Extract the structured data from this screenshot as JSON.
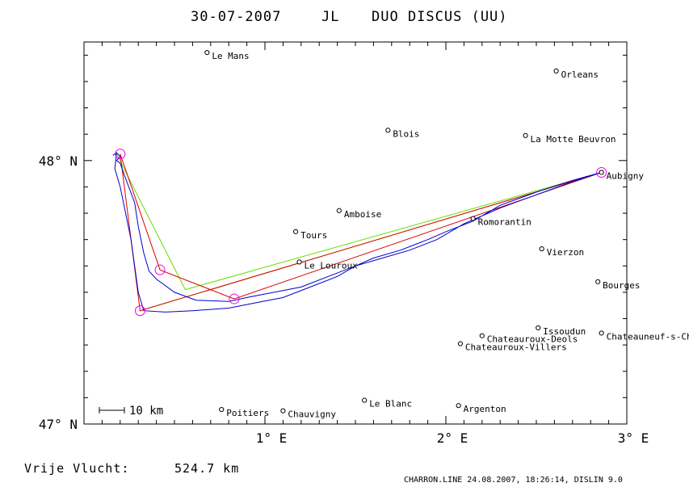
{
  "title": {
    "date": "30-07-2007",
    "pilot": "JL",
    "glider": "DUO DISCUS (UU)"
  },
  "axes": {
    "lon_range": [
      0.0,
      3.0
    ],
    "lat_range": [
      47.0,
      48.45
    ],
    "x_ticks": [
      {
        "lon": 1,
        "label": "1° E"
      },
      {
        "lon": 2,
        "label": "2° E"
      },
      {
        "lon": 3,
        "label": "3° E"
      }
    ],
    "y_ticks": [
      {
        "lat": 48,
        "label": "48° N"
      },
      {
        "lat": 47,
        "label": "47° N"
      }
    ]
  },
  "scale_bar": {
    "label": "10 km"
  },
  "towns": [
    {
      "name": "Le Mans",
      "lon": 0.68,
      "lat": 48.41
    },
    {
      "name": "Orleans",
      "lon": 2.61,
      "lat": 48.34
    },
    {
      "name": "Blois",
      "lon": 1.68,
      "lat": 48.115
    },
    {
      "name": "La Motte Beuvron",
      "lon": 2.44,
      "lat": 48.095
    },
    {
      "name": "Aubigny",
      "lon": 2.86,
      "lat": 47.955
    },
    {
      "name": "Amboise",
      "lon": 1.41,
      "lat": 47.81
    },
    {
      "name": "Romorantin",
      "lon": 2.15,
      "lat": 47.78
    },
    {
      "name": "Tours",
      "lon": 1.17,
      "lat": 47.73
    },
    {
      "name": "Vierzon",
      "lon": 2.53,
      "lat": 47.665
    },
    {
      "name": "Le Louroux",
      "lon": 1.19,
      "lat": 47.615
    },
    {
      "name": "Bourges",
      "lon": 2.84,
      "lat": 47.54
    },
    {
      "name": "Issoudun",
      "lon": 2.51,
      "lat": 47.365
    },
    {
      "name": "Chateauroux-Deols",
      "lon": 2.2,
      "lat": 47.335
    },
    {
      "name": "Chateauneuf-s-Cher",
      "lon": 2.86,
      "lat": 47.345
    },
    {
      "name": "Chateauroux-Villers",
      "lon": 2.08,
      "lat": 47.305
    },
    {
      "name": "Le Blanc",
      "lon": 1.55,
      "lat": 47.09
    },
    {
      "name": "Argenton",
      "lon": 2.07,
      "lat": 47.07
    },
    {
      "name": "Poitiers",
      "lon": 0.76,
      "lat": 47.055
    },
    {
      "name": "Chauvigny",
      "lon": 1.1,
      "lat": 47.05
    }
  ],
  "turnpoints": [
    {
      "lon": 0.2,
      "lat": 48.025
    },
    {
      "lon": 0.42,
      "lat": 47.585
    },
    {
      "lon": 0.83,
      "lat": 47.475
    },
    {
      "lon": 0.31,
      "lat": 47.43
    },
    {
      "lon": 2.86,
      "lat": 47.955
    }
  ],
  "route_red": [
    [
      0.2,
      48.025
    ],
    [
      0.31,
      47.43
    ],
    [
      2.86,
      47.955
    ],
    [
      0.83,
      47.475
    ],
    [
      0.42,
      47.585
    ],
    [
      0.2,
      48.025
    ]
  ],
  "route_green": [
    [
      0.18,
      48.025
    ],
    [
      0.56,
      47.51
    ],
    [
      2.86,
      47.955
    ],
    [
      0.31,
      47.43
    ]
  ],
  "track": [
    [
      0.16,
      48.02
    ],
    [
      0.18,
      48.03
    ],
    [
      0.2,
      48.015
    ],
    [
      0.18,
      48.0
    ],
    [
      0.2,
      47.99
    ],
    [
      0.22,
      47.95
    ],
    [
      0.28,
      47.84
    ],
    [
      0.3,
      47.75
    ],
    [
      0.33,
      47.65
    ],
    [
      0.36,
      47.58
    ],
    [
      0.4,
      47.55
    ],
    [
      0.5,
      47.5
    ],
    [
      0.62,
      47.47
    ],
    [
      0.8,
      47.465
    ],
    [
      0.9,
      47.48
    ],
    [
      1.05,
      47.5
    ],
    [
      1.2,
      47.52
    ],
    [
      1.35,
      47.56
    ],
    [
      1.5,
      47.6
    ],
    [
      1.65,
      47.63
    ],
    [
      1.8,
      47.66
    ],
    [
      1.95,
      47.7
    ],
    [
      2.1,
      47.76
    ],
    [
      2.3,
      47.82
    ],
    [
      2.5,
      47.87
    ],
    [
      2.7,
      47.92
    ],
    [
      2.86,
      47.955
    ],
    [
      2.7,
      47.925
    ],
    [
      2.5,
      47.88
    ],
    [
      2.3,
      47.83
    ],
    [
      2.15,
      47.77
    ],
    [
      2.0,
      47.73
    ],
    [
      1.9,
      47.7
    ],
    [
      1.75,
      47.66
    ],
    [
      1.6,
      47.63
    ],
    [
      1.5,
      47.6
    ],
    [
      1.4,
      47.56
    ],
    [
      1.25,
      47.52
    ],
    [
      1.1,
      47.48
    ],
    [
      0.95,
      47.46
    ],
    [
      0.8,
      47.44
    ],
    [
      0.6,
      47.43
    ],
    [
      0.45,
      47.425
    ],
    [
      0.33,
      47.43
    ],
    [
      0.3,
      47.5
    ],
    [
      0.28,
      47.6
    ],
    [
      0.26,
      47.7
    ],
    [
      0.23,
      47.8
    ],
    [
      0.2,
      47.9
    ],
    [
      0.17,
      47.97
    ],
    [
      0.18,
      48.03
    ]
  ],
  "distance": {
    "label": "Vrije Vlucht:",
    "value": "524.7 km"
  },
  "footer": "CHARRON.LINE 24.08.2007, 18:26:14, DISLIN 9.0",
  "colors": {
    "axes": "#000000",
    "track": "#0000cc",
    "route_red": "#dd0000",
    "route_green": "#66dd00",
    "turnpoint": "#ee00ee"
  }
}
